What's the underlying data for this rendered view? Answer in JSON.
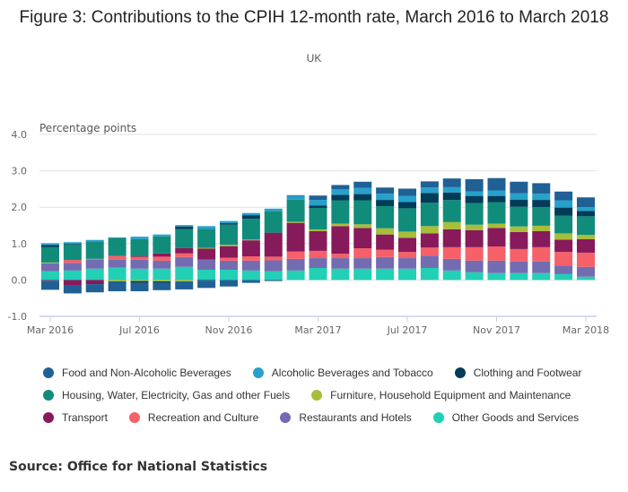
{
  "chart_data": {
    "type": "bar",
    "stacked": true,
    "title": "Figure 3: Contributions to the CPIH 12-month rate, March 2016 to March 2018",
    "subtitle": "UK",
    "ylabel": "Percentage points",
    "xlabel": "",
    "ylim": [
      -1.0,
      4.0
    ],
    "yticks": [
      "-1.0",
      "0.0",
      "1.0",
      "2.0",
      "3.0",
      "4.0"
    ],
    "ytick_values": [
      -1,
      0,
      1,
      2,
      3,
      4
    ],
    "grid": true,
    "legend_placement": "bottom",
    "categories": [
      "Mar 2016",
      "Apr 2016",
      "May 2016",
      "Jun 2016",
      "Jul 2016",
      "Aug 2016",
      "Sep 2016",
      "Oct 2016",
      "Nov 2016",
      "Dec 2016",
      "Jan 2017",
      "Feb 2017",
      "Mar 2017",
      "Apr 2017",
      "May 2017",
      "Jun 2017",
      "Jul 2017",
      "Aug 2017",
      "Sep 2017",
      "Oct 2017",
      "Nov 2017",
      "Dec 2017",
      "Jan 2018",
      "Feb 2018",
      "Mar 2018"
    ],
    "xtick_labels": [
      {
        "index": 0,
        "label": "Mar 2016"
      },
      {
        "index": 4,
        "label": "Jul 2016"
      },
      {
        "index": 8,
        "label": "Nov 2016"
      },
      {
        "index": 12,
        "label": "Mar 2017"
      },
      {
        "index": 16,
        "label": "Jul 2017"
      },
      {
        "index": 20,
        "label": "Nov 2017"
      },
      {
        "index": 24,
        "label": "Mar 2018"
      }
    ],
    "series": [
      {
        "name": "Other Goods and Services",
        "color": "#22d0b6",
        "values": [
          0.24,
          0.26,
          0.31,
          0.34,
          0.31,
          0.31,
          0.36,
          0.28,
          0.28,
          0.26,
          0.24,
          0.26,
          0.33,
          0.31,
          0.31,
          0.31,
          0.31,
          0.33,
          0.26,
          0.21,
          0.19,
          0.19,
          0.19,
          0.16,
          0.09
        ]
      },
      {
        "name": "Restaurants and Hotels",
        "color": "#746cb1",
        "values": [
          0.22,
          0.21,
          0.25,
          0.22,
          0.25,
          0.22,
          0.27,
          0.28,
          0.25,
          0.27,
          0.3,
          0.32,
          0.27,
          0.29,
          0.29,
          0.32,
          0.29,
          0.34,
          0.32,
          0.32,
          0.34,
          0.32,
          0.32,
          0.24,
          0.27
        ]
      },
      {
        "name": "Recreation and Culture",
        "color": "#f66068",
        "values": [
          0.0,
          0.08,
          0.02,
          0.1,
          0.08,
          0.11,
          0.1,
          0.0,
          0.08,
          0.12,
          0.1,
          0.2,
          0.2,
          0.12,
          0.27,
          0.2,
          0.17,
          0.22,
          0.32,
          0.37,
          0.39,
          0.34,
          0.39,
          0.37,
          0.39
        ]
      },
      {
        "name": "Transport",
        "color": "#871a5b",
        "values": [
          -0.02,
          -0.16,
          -0.1,
          0.0,
          0.01,
          0.09,
          0.15,
          0.3,
          0.32,
          0.44,
          0.66,
          0.79,
          0.54,
          0.76,
          0.56,
          0.42,
          0.39,
          0.39,
          0.49,
          0.47,
          0.51,
          0.47,
          0.44,
          0.34,
          0.37
        ]
      },
      {
        "name": "Furniture, Household Equipment and Maintenance",
        "color": "#a8bd3a",
        "values": [
          0.02,
          0.0,
          0.0,
          -0.04,
          -0.03,
          -0.04,
          -0.04,
          0.02,
          0.04,
          0.02,
          0.0,
          0.03,
          0.05,
          0.07,
          0.1,
          0.17,
          0.17,
          0.2,
          0.2,
          0.15,
          0.12,
          0.15,
          0.15,
          0.17,
          0.12
        ]
      },
      {
        "name": "Housing, Water, Electricity, Gas and other Fuels",
        "color": "#118c7b",
        "values": [
          0.42,
          0.43,
          0.48,
          0.5,
          0.47,
          0.47,
          0.52,
          0.53,
          0.55,
          0.57,
          0.59,
          0.61,
          0.59,
          0.64,
          0.66,
          0.61,
          0.64,
          0.64,
          0.61,
          0.59,
          0.59,
          0.54,
          0.51,
          0.49,
          0.51
        ]
      },
      {
        "name": "Clothing and Footwear",
        "color": "#003c57",
        "values": [
          0.06,
          0.02,
          -0.02,
          -0.02,
          -0.05,
          -0.04,
          0.07,
          -0.02,
          0.04,
          0.1,
          0.0,
          0.0,
          0.07,
          0.15,
          0.17,
          0.17,
          0.17,
          0.27,
          0.2,
          0.2,
          0.17,
          0.2,
          0.2,
          0.22,
          0.15
        ]
      },
      {
        "name": "Alcoholic Beverages and Tobacco",
        "color": "#27a0cc",
        "values": [
          0.05,
          0.04,
          0.04,
          0.01,
          0.07,
          0.05,
          0.04,
          0.07,
          0.06,
          0.06,
          0.07,
          0.1,
          0.15,
          0.15,
          0.17,
          0.17,
          0.17,
          0.15,
          0.15,
          0.12,
          0.15,
          0.17,
          0.17,
          0.2,
          0.1
        ]
      },
      {
        "name": "Food and Non-Alcoholic Beverages",
        "color": "#206095",
        "values": [
          -0.25,
          -0.21,
          -0.22,
          -0.25,
          -0.23,
          -0.2,
          -0.22,
          -0.2,
          -0.18,
          -0.08,
          -0.03,
          0.02,
          0.12,
          0.12,
          0.17,
          0.17,
          0.2,
          0.17,
          0.24,
          0.34,
          0.34,
          0.32,
          0.29,
          0.24,
          0.27
        ]
      }
    ],
    "legend_order": [
      8,
      7,
      6,
      5,
      4,
      3,
      2,
      1,
      0
    ]
  },
  "source": "Source: Office for National Statistics"
}
